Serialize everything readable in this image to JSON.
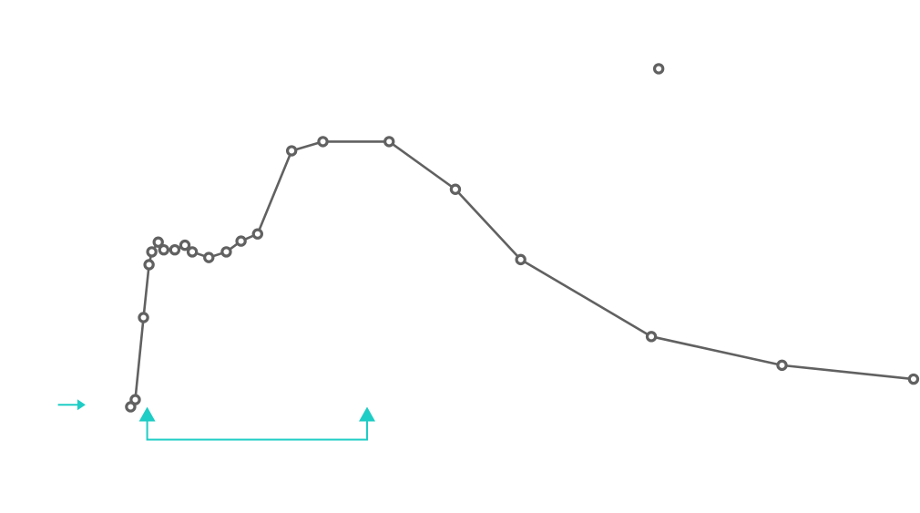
{
  "chart_data": {
    "type": "line",
    "title": "",
    "xlabel": "",
    "ylabel": "",
    "grid": false,
    "legend": "none",
    "colors": {
      "series": "#616161",
      "marker_fill": "#ffffff",
      "annotation": "#1ecdc5",
      "background": "#ffffff"
    },
    "xlim": [
      0,
      100
    ],
    "ylim": [
      0,
      100
    ],
    "series": [
      {
        "points": [
          [
            14.2,
            20.7
          ],
          [
            14.7,
            22.1
          ],
          [
            15.6,
            38.1
          ],
          [
            16.2,
            48.4
          ],
          [
            16.5,
            50.9
          ],
          [
            17.2,
            52.8
          ],
          [
            17.8,
            51.3
          ],
          [
            19.0,
            51.3
          ],
          [
            20.1,
            52.2
          ],
          [
            20.9,
            50.9
          ],
          [
            22.7,
            49.8
          ],
          [
            24.6,
            50.9
          ],
          [
            26.2,
            53.0
          ],
          [
            28.0,
            54.4
          ],
          [
            31.7,
            70.6
          ],
          [
            35.1,
            72.4
          ],
          [
            42.3,
            72.4
          ],
          [
            49.5,
            63.1
          ],
          [
            56.6,
            49.4
          ],
          [
            70.8,
            34.4
          ],
          [
            85.0,
            28.8
          ],
          [
            99.3,
            26.1
          ]
        ]
      }
    ],
    "outliers": [
      [
        71.6,
        86.6
      ]
    ],
    "annotations": [
      {
        "kind": "arrow-right",
        "x_from": 6.3,
        "x_to": 9.3,
        "y": 21.1
      },
      {
        "kind": "bracket-up-arrows",
        "x1": 16.0,
        "x2": 39.9,
        "y_tip": 20.7,
        "y_base": 14.3
      }
    ]
  }
}
